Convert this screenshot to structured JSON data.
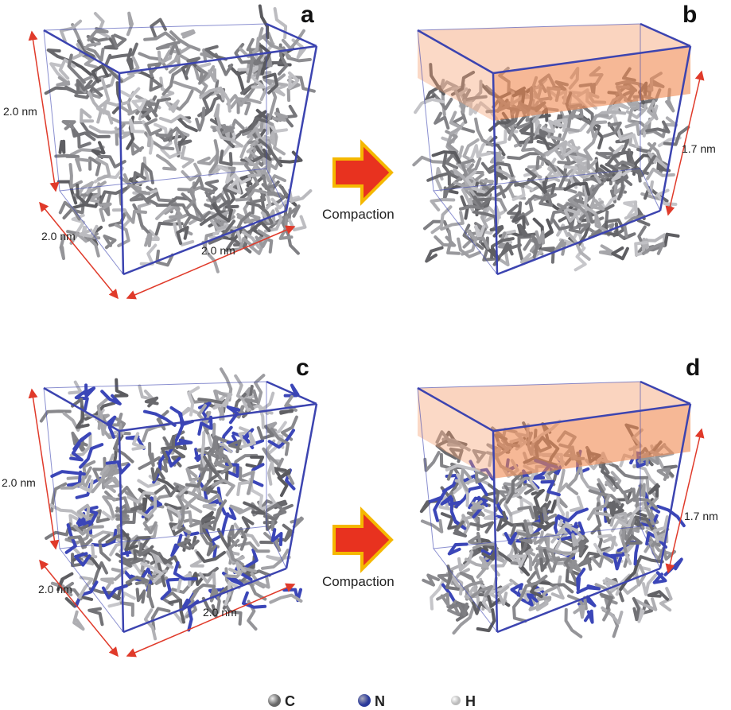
{
  "panels": [
    {
      "label": "a",
      "dims": [
        "2.0 nm",
        "2.0 nm",
        "2.0 nm"
      ]
    },
    {
      "label": "b",
      "dims": [
        "1.7 nm"
      ]
    },
    {
      "label": "c",
      "dims": [
        "2.0 nm",
        "2.0 nm",
        "2.0 nm"
      ]
    },
    {
      "label": "d",
      "dims": [
        "1.7 nm"
      ]
    }
  ],
  "arrows": [
    {
      "label": "Compaction"
    },
    {
      "label": "Compaction"
    }
  ],
  "legend": [
    {
      "symbol": "C"
    },
    {
      "symbol": "N"
    },
    {
      "symbol": "H"
    }
  ]
}
